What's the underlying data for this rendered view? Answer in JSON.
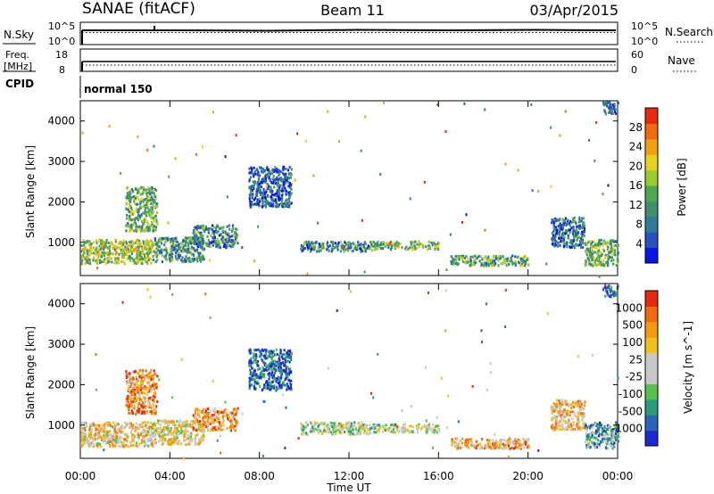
{
  "header": {
    "station": "SANAE (fitACF)",
    "beam": "Beam 11",
    "date": "03/Apr/2015"
  },
  "status_panels": {
    "nsky_label": "N.Sky",
    "nsearch_label": "N.Search",
    "count_ticks": [
      "10^5",
      "10^0"
    ],
    "freq_label_1": "Freq.",
    "freq_label_2": "[MHz]",
    "freq_ticks": [
      "18",
      "8"
    ],
    "nave_label": "Nave",
    "nave_ticks": [
      "60",
      "0"
    ],
    "cpid_label": "CPID",
    "cpid_value": "normal 150"
  },
  "chart_data": [
    {
      "type": "heatmap",
      "name": "power",
      "ylabel": "Slant Range [km]",
      "xlabel": "Time UT",
      "x_ticks": [
        "00:00",
        "04:00",
        "08:00",
        "12:00",
        "16:00",
        "20:00",
        "00:00"
      ],
      "x_range_hours": [
        0,
        24
      ],
      "y_ticks": [
        1000,
        2000,
        3000,
        4000
      ],
      "y_range_km": [
        180,
        4500
      ],
      "colorbar": {
        "label": "Power [dB]",
        "ticks": [
          28,
          24,
          20,
          16,
          12,
          8,
          4
        ],
        "colors": [
          "#0a14e6",
          "#2a4fbf",
          "#2f7a9a",
          "#3f8f6f",
          "#4fa84f",
          "#9ccc2b",
          "#e6d020",
          "#f0a010",
          "#f06a10",
          "#e62a10"
        ]
      },
      "scatter_regions": [
        {
          "t": [
            0.0,
            3.2
          ],
          "r": [
            500,
            1100
          ],
          "level": 0.55
        },
        {
          "t": [
            2.0,
            3.4
          ],
          "r": [
            1300,
            2400
          ],
          "level": 0.45
        },
        {
          "t": [
            3.2,
            5.5
          ],
          "r": [
            550,
            1150
          ],
          "level": 0.35
        },
        {
          "t": [
            5.0,
            7.0
          ],
          "r": [
            900,
            1450
          ],
          "level": 0.3
        },
        {
          "t": [
            7.5,
            9.4
          ],
          "r": [
            1900,
            2900
          ],
          "level": 0.2
        },
        {
          "t": [
            9.8,
            13.0
          ],
          "r": [
            800,
            1050
          ],
          "level": 0.3
        },
        {
          "t": [
            13.0,
            16.0
          ],
          "r": [
            850,
            1050
          ],
          "level": 0.45
        },
        {
          "t": [
            16.5,
            20.0
          ],
          "r": [
            450,
            700
          ],
          "level": 0.4
        },
        {
          "t": [
            21.0,
            22.5
          ],
          "r": [
            900,
            1650
          ],
          "level": 0.25
        },
        {
          "t": [
            22.5,
            24.0
          ],
          "r": [
            450,
            1100
          ],
          "level": 0.45
        },
        {
          "t": [
            23.3,
            24.0
          ],
          "r": [
            4200,
            4500
          ],
          "level": 0.2
        }
      ]
    },
    {
      "type": "heatmap",
      "name": "velocity",
      "ylabel": "Slant Range [km]",
      "xlabel": "Time UT",
      "x_ticks": [
        "00:00",
        "04:00",
        "08:00",
        "12:00",
        "16:00",
        "20:00",
        "00:00"
      ],
      "x_range_hours": [
        0,
        24
      ],
      "y_ticks": [
        1000,
        2000,
        3000,
        4000
      ],
      "y_range_km": [
        180,
        4500
      ],
      "colorbar": {
        "label": "Velocity [m s^-1]",
        "ticks": [
          "1000",
          "500",
          "100",
          "25",
          "-25",
          "-100",
          "-500",
          "-1000"
        ],
        "colors": [
          "#1a2cd0",
          "#2a64b8",
          "#2e9a7c",
          "#58c24a",
          "#c8c8c8",
          "#c8c8c8",
          "#f0c020",
          "#f09a10",
          "#f06a10",
          "#e62a10"
        ]
      },
      "scatter_regions": [
        {
          "t": [
            0.0,
            3.2
          ],
          "r": [
            500,
            1100
          ],
          "level": 0.6
        },
        {
          "t": [
            2.0,
            3.4
          ],
          "r": [
            1300,
            2400
          ],
          "level": 0.75
        },
        {
          "t": [
            3.2,
            5.5
          ],
          "r": [
            550,
            1150
          ],
          "level": 0.55
        },
        {
          "t": [
            5.0,
            7.0
          ],
          "r": [
            900,
            1450
          ],
          "level": 0.75
        },
        {
          "t": [
            7.5,
            9.4
          ],
          "r": [
            1900,
            2900
          ],
          "level": 0.15
        },
        {
          "t": [
            9.8,
            13.0
          ],
          "r": [
            800,
            1100
          ],
          "level": 0.45
        },
        {
          "t": [
            13.0,
            16.0
          ],
          "r": [
            850,
            1050
          ],
          "level": 0.45
        },
        {
          "t": [
            16.5,
            20.0
          ],
          "r": [
            450,
            700
          ],
          "level": 0.7
        },
        {
          "t": [
            21.0,
            22.5
          ],
          "r": [
            900,
            1650
          ],
          "level": 0.65
        },
        {
          "t": [
            22.5,
            24.0
          ],
          "r": [
            450,
            1100
          ],
          "level": 0.3
        },
        {
          "t": [
            23.3,
            24.0
          ],
          "r": [
            4200,
            4500
          ],
          "level": 0.2
        }
      ]
    }
  ]
}
